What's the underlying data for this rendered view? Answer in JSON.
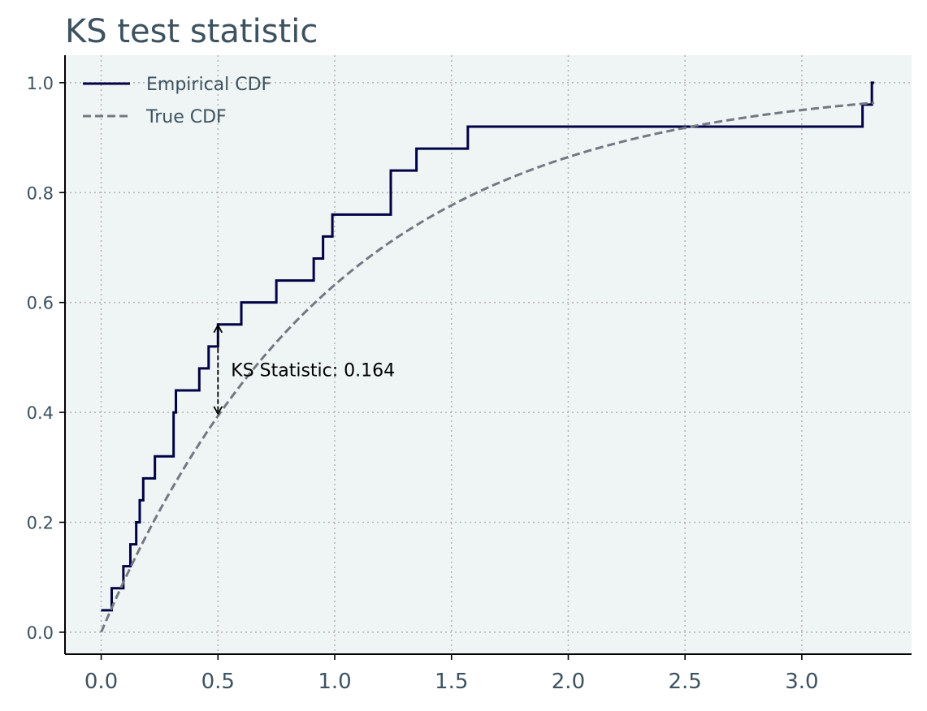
{
  "chart_data": {
    "type": "line",
    "title": "KS test statistic",
    "xlabel": "",
    "ylabel": "",
    "xlim": [
      -0.155,
      3.47
    ],
    "ylim": [
      -0.04,
      1.05
    ],
    "x_ticks": [
      0.0,
      0.5,
      1.0,
      1.5,
      2.0,
      2.5,
      3.0
    ],
    "x_tick_labels": [
      "0.0",
      "0.5",
      "1.0",
      "1.5",
      "2.0",
      "2.5",
      "3.0"
    ],
    "y_ticks": [
      0.0,
      0.2,
      0.4,
      0.6,
      0.8,
      1.0
    ],
    "y_tick_labels": [
      "0.0",
      "0.2",
      "0.4",
      "0.6",
      "0.8",
      "1.0"
    ],
    "grid": true,
    "legend_position": "top-left",
    "colors": {
      "empirical": "#000044",
      "true": "#737883",
      "plot_bg": "#eff4f4",
      "text": "#3d5260",
      "grid": "#b8b8b8"
    },
    "series": [
      {
        "name": "Empirical CDF",
        "style": "step",
        "x": [
          0.0,
          0.045,
          0.095,
          0.125,
          0.15,
          0.165,
          0.18,
          0.23,
          0.31,
          0.32,
          0.42,
          0.46,
          0.5,
          0.6,
          0.75,
          0.91,
          0.95,
          0.99,
          1.24,
          1.35,
          1.57,
          3.26,
          3.3,
          3.31
        ],
        "y": [
          0.04,
          0.08,
          0.12,
          0.16,
          0.2,
          0.24,
          0.28,
          0.32,
          0.4,
          0.44,
          0.48,
          0.52,
          0.56,
          0.6,
          0.64,
          0.68,
          0.72,
          0.76,
          0.84,
          0.88,
          0.92,
          0.96,
          1.0,
          1.0
        ]
      },
      {
        "name": "True CDF",
        "style": "dashed",
        "rate": 1.0,
        "x_range": [
          0.0,
          3.31
        ]
      }
    ],
    "annotation": {
      "text": "KS Statistic: 0.164",
      "x": 0.5,
      "y_top": 0.56,
      "y_bottom": 0.396
    }
  }
}
